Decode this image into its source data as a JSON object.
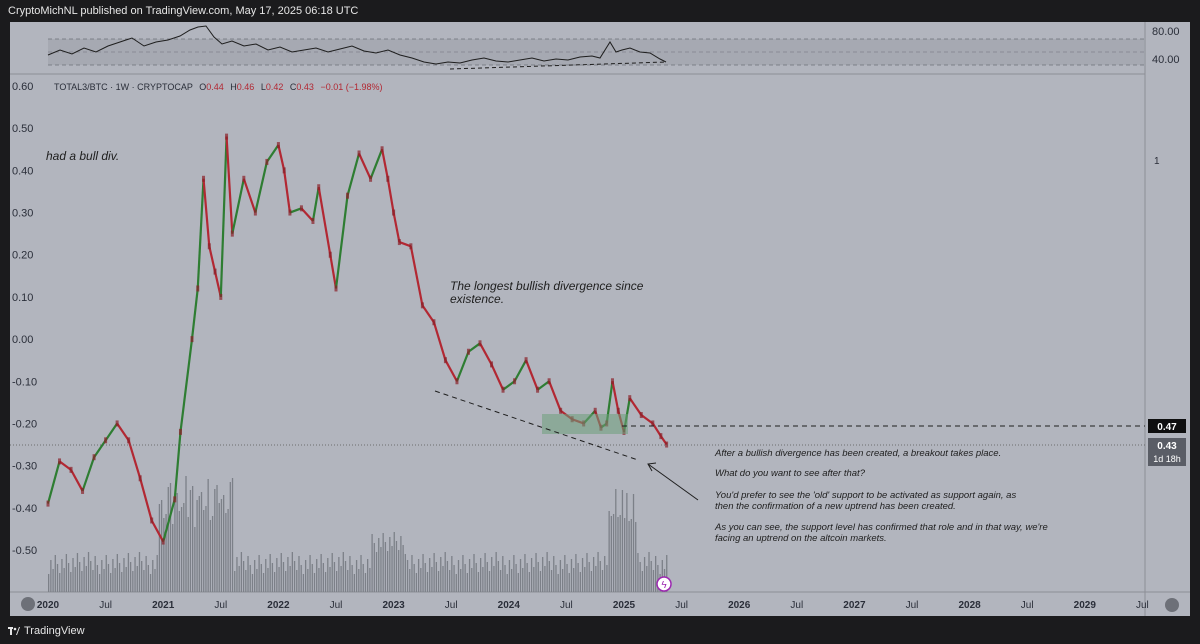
{
  "header": {
    "text": "CryptoMichNL published on TradingView.com, May 17, 2025 06:18 UTC"
  },
  "footer": {
    "brand": "TradingView"
  },
  "legend": {
    "symbol": "TOTAL3/BTC · 1W · CRYPTOCAP",
    "open_label": "O",
    "open": "0.44",
    "high_label": "H",
    "high": "0.46",
    "low_label": "L",
    "low": "0.42",
    "close_label": "C",
    "close": "0.43",
    "change": "−0.01 (−1.98%)"
  },
  "rsi": {
    "levels": [
      "80.00",
      "40.00"
    ]
  },
  "price_badges": {
    "level": "0.47",
    "last": "0.43",
    "countdown": "1d 18h"
  },
  "annotations": {
    "bull_div": "had a bull div.",
    "longest_line1": "The longest bullish divergence since",
    "longest_line2": "existence.",
    "p1": "After a bullish divergence has been created, a breakout takes place.",
    "p2": "What do you want to see after that?",
    "p3a": "You'd prefer to see the 'old' support to be activated as support again, as",
    "p3b": "then the confirmation of a new uptrend has been created.",
    "p4a": "As you can see, the support level has confirmed that role and in that way, we're",
    "p4b": "facing an uptrend on the altcoin markets."
  },
  "right_scale_label": "1",
  "chart_data": {
    "type": "line",
    "title": "TOTAL3/BTC · 1W · CRYPTOCAP",
    "y_ticks": [
      "0.60",
      "0.50",
      "0.40",
      "0.30",
      "0.20",
      "0.10",
      "0.00",
      "-0.10",
      "-0.20",
      "-0.30",
      "-0.40",
      "-0.50"
    ],
    "x_ticks": [
      "2020",
      "Jul",
      "2021",
      "Jul",
      "2022",
      "Jul",
      "2023",
      "Jul",
      "2024",
      "Jul",
      "2025",
      "Jul",
      "2026",
      "Jul",
      "2027",
      "Jul",
      "2028",
      "Jul",
      "2029",
      "Jul"
    ],
    "ylim": [
      -0.6,
      0.62
    ],
    "series": [
      {
        "values": [
          [
            2020.0,
            -0.39
          ],
          [
            2020.1,
            -0.29
          ],
          [
            2020.2,
            -0.31
          ],
          [
            2020.3,
            -0.36
          ],
          [
            2020.4,
            -0.28
          ],
          [
            2020.5,
            -0.24
          ],
          [
            2020.6,
            -0.2
          ],
          [
            2020.7,
            -0.24
          ],
          [
            2020.8,
            -0.33
          ],
          [
            2020.9,
            -0.43
          ],
          [
            2021.0,
            -0.48
          ],
          [
            2021.1,
            -0.38
          ],
          [
            2021.15,
            -0.22
          ],
          [
            2021.25,
            0.0
          ],
          [
            2021.3,
            0.12
          ],
          [
            2021.35,
            0.38
          ],
          [
            2021.4,
            0.22
          ],
          [
            2021.45,
            0.16
          ],
          [
            2021.5,
            0.1
          ],
          [
            2021.55,
            0.48
          ],
          [
            2021.6,
            0.25
          ],
          [
            2021.7,
            0.38
          ],
          [
            2021.8,
            0.3
          ],
          [
            2021.9,
            0.42
          ],
          [
            2022.0,
            0.46
          ],
          [
            2022.05,
            0.4
          ],
          [
            2022.1,
            0.3
          ],
          [
            2022.2,
            0.31
          ],
          [
            2022.3,
            0.28
          ],
          [
            2022.35,
            0.36
          ],
          [
            2022.45,
            0.2
          ],
          [
            2022.5,
            0.12
          ],
          [
            2022.6,
            0.34
          ],
          [
            2022.7,
            0.44
          ],
          [
            2022.8,
            0.38
          ],
          [
            2022.9,
            0.45
          ],
          [
            2022.95,
            0.38
          ],
          [
            2023.0,
            0.3
          ],
          [
            2023.05,
            0.23
          ],
          [
            2023.15,
            0.22
          ],
          [
            2023.25,
            0.08
          ],
          [
            2023.35,
            0.04
          ],
          [
            2023.45,
            -0.05
          ],
          [
            2023.55,
            -0.1
          ],
          [
            2023.65,
            -0.03
          ],
          [
            2023.75,
            -0.01
          ],
          [
            2023.85,
            -0.06
          ],
          [
            2023.95,
            -0.12
          ],
          [
            2024.05,
            -0.1
          ],
          [
            2024.15,
            -0.05
          ],
          [
            2024.25,
            -0.12
          ],
          [
            2024.35,
            -0.1
          ],
          [
            2024.45,
            -0.17
          ],
          [
            2024.55,
            -0.19
          ],
          [
            2024.65,
            -0.2
          ],
          [
            2024.75,
            -0.17
          ],
          [
            2024.8,
            -0.21
          ],
          [
            2024.85,
            -0.2
          ],
          [
            2024.9,
            -0.1
          ],
          [
            2024.95,
            -0.17
          ],
          [
            2025.0,
            -0.22
          ],
          [
            2025.05,
            -0.14
          ],
          [
            2025.15,
            -0.18
          ],
          [
            2025.25,
            -0.2
          ],
          [
            2025.32,
            -0.23
          ],
          [
            2025.37,
            -0.25
          ]
        ]
      }
    ]
  }
}
